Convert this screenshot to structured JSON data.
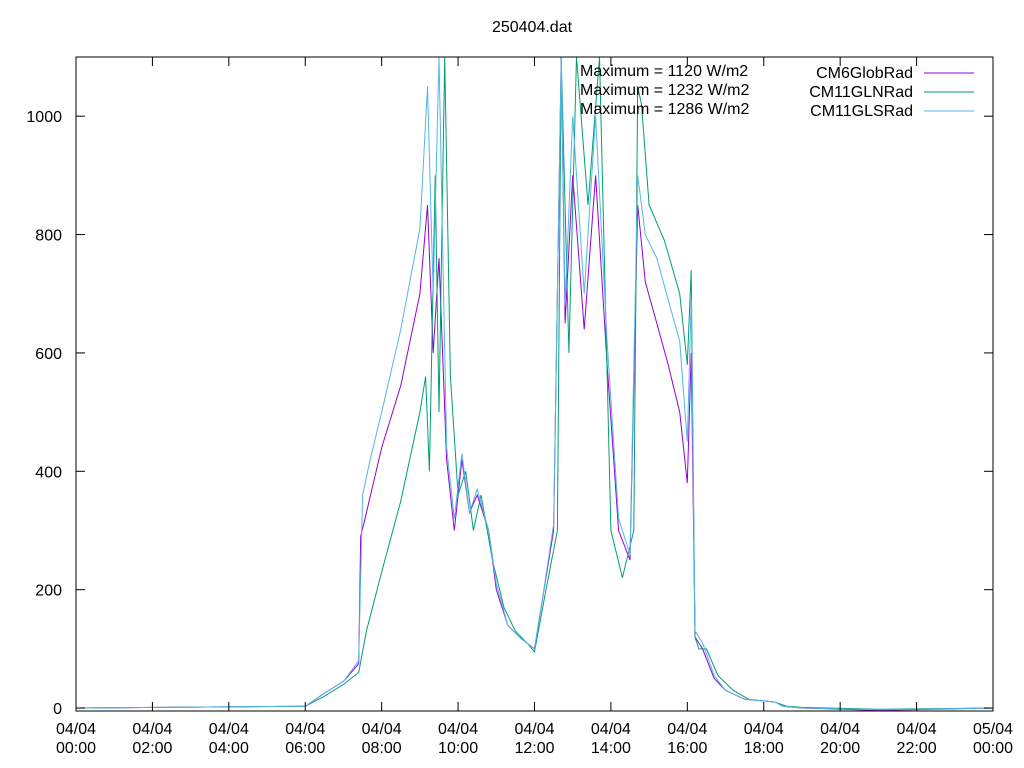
{
  "chart_data": {
    "type": "line",
    "title": "250404.dat",
    "xlabel": "",
    "ylabel": "",
    "x_unit": "hours",
    "xlim": [
      0,
      24
    ],
    "ylim": [
      -5,
      1100
    ],
    "grid": false,
    "legend_position": "top-right",
    "x_ticks": [
      {
        "value": 0,
        "label_date": "04/04",
        "label_time": "00:00"
      },
      {
        "value": 2,
        "label_date": "04/04",
        "label_time": "02:00"
      },
      {
        "value": 4,
        "label_date": "04/04",
        "label_time": "04:00"
      },
      {
        "value": 6,
        "label_date": "04/04",
        "label_time": "06:00"
      },
      {
        "value": 8,
        "label_date": "04/04",
        "label_time": "08:00"
      },
      {
        "value": 10,
        "label_date": "04/04",
        "label_time": "10:00"
      },
      {
        "value": 12,
        "label_date": "04/04",
        "label_time": "12:00"
      },
      {
        "value": 14,
        "label_date": "04/04",
        "label_time": "14:00"
      },
      {
        "value": 16,
        "label_date": "04/04",
        "label_time": "16:00"
      },
      {
        "value": 18,
        "label_date": "04/04",
        "label_time": "18:00"
      },
      {
        "value": 20,
        "label_date": "04/04",
        "label_time": "20:00"
      },
      {
        "value": 22,
        "label_date": "04/04",
        "label_time": "22:00"
      },
      {
        "value": 24,
        "label_date": "05/04",
        "label_time": "00:00"
      }
    ],
    "y_ticks": [
      0,
      200,
      400,
      600,
      800,
      1000
    ],
    "annotations": [
      "Maximum = 1120 W/m2",
      "Maximum = 1232 W/m2",
      "Maximum = 1286 W/m2"
    ],
    "series": [
      {
        "name": "CM6GlobRad",
        "color": "#9400d3",
        "x": [
          0,
          6.0,
          6.5,
          7.0,
          7.4,
          7.45,
          7.6,
          8.0,
          8.5,
          9.0,
          9.2,
          9.35,
          9.5,
          9.7,
          9.9,
          10.1,
          10.3,
          10.5,
          10.8,
          11.0,
          11.3,
          11.6,
          12.0,
          12.2,
          12.5,
          12.7,
          12.8,
          13.0,
          13.3,
          13.6,
          13.9,
          14.2,
          14.5,
          14.7,
          14.9,
          15.2,
          15.5,
          15.8,
          16.0,
          16.1,
          16.2,
          16.4,
          16.7,
          17.0,
          17.5,
          18.0,
          18.3,
          18.5,
          18.8,
          19.0,
          21.0,
          24.0
        ],
        "y": [
          0,
          3,
          25,
          45,
          75,
          290,
          330,
          440,
          545,
          700,
          850,
          600,
          760,
          420,
          300,
          420,
          330,
          360,
          300,
          200,
          140,
          120,
          100,
          180,
          300,
          1100,
          650,
          900,
          640,
          900,
          580,
          300,
          250,
          850,
          720,
          650,
          580,
          500,
          380,
          600,
          120,
          100,
          50,
          30,
          15,
          12,
          10,
          3,
          1,
          0,
          -4,
          0
        ]
      },
      {
        "name": "CM11GLNRad",
        "color": "#009e73",
        "x": [
          0,
          6.0,
          6.5,
          7.0,
          7.4,
          7.6,
          8.0,
          8.5,
          9.0,
          9.15,
          9.25,
          9.4,
          9.5,
          9.65,
          9.8,
          10.0,
          10.2,
          10.4,
          10.6,
          10.9,
          11.2,
          11.5,
          11.8,
          12.0,
          12.3,
          12.6,
          12.7,
          12.9,
          13.1,
          13.4,
          13.7,
          14.0,
          14.3,
          14.6,
          14.7,
          14.8,
          15.0,
          15.4,
          15.8,
          16.0,
          16.1,
          16.2,
          16.3,
          16.5,
          16.8,
          17.2,
          17.6,
          18.0,
          18.3,
          18.6,
          19.0,
          21.0,
          24.0
        ],
        "y": [
          0,
          3,
          20,
          40,
          60,
          130,
          230,
          350,
          500,
          560,
          400,
          900,
          500,
          1100,
          560,
          360,
          400,
          300,
          360,
          250,
          170,
          130,
          110,
          95,
          200,
          300,
          1100,
          600,
          1100,
          850,
          1100,
          300,
          220,
          300,
          1050,
          1020,
          850,
          790,
          700,
          580,
          740,
          120,
          100,
          100,
          55,
          30,
          15,
          12,
          10,
          3,
          1,
          -2,
          0
        ]
      },
      {
        "name": "CM11GLSRad",
        "color": "#56b4e9",
        "x": [
          0,
          6.0,
          6.5,
          7.0,
          7.4,
          7.5,
          7.7,
          8.0,
          8.5,
          9.0,
          9.2,
          9.35,
          9.5,
          9.7,
          9.9,
          10.1,
          10.3,
          10.5,
          10.8,
          11.0,
          11.3,
          11.6,
          12.0,
          12.2,
          12.5,
          12.7,
          12.8,
          13.0,
          13.3,
          13.6,
          13.9,
          14.2,
          14.5,
          14.7,
          14.9,
          15.2,
          15.5,
          15.8,
          16.0,
          16.1,
          16.2,
          16.4,
          16.7,
          17.0,
          17.5,
          18.0,
          18.3,
          18.5,
          18.8,
          19.0,
          21.0,
          24.0
        ],
        "y": [
          0,
          3,
          25,
          45,
          80,
          360,
          420,
          500,
          640,
          810,
          1050,
          700,
          1100,
          440,
          320,
          430,
          330,
          370,
          300,
          210,
          140,
          120,
          100,
          180,
          310,
          1100,
          680,
          1000,
          700,
          1000,
          620,
          320,
          260,
          900,
          800,
          760,
          690,
          620,
          450,
          690,
          130,
          110,
          55,
          30,
          15,
          12,
          10,
          3,
          1,
          0,
          -3,
          0
        ]
      }
    ]
  }
}
